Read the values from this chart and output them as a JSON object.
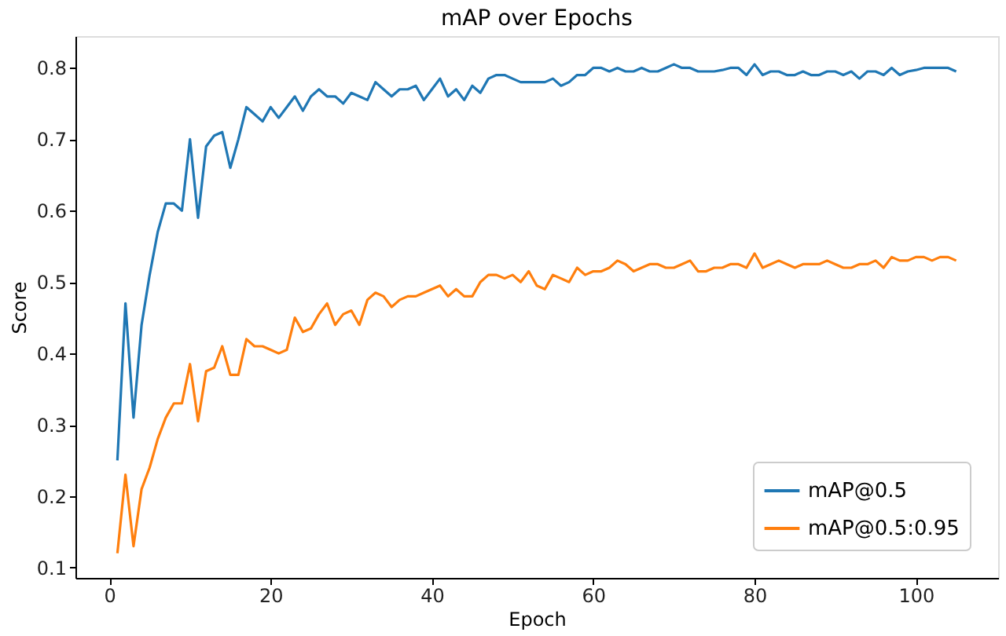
{
  "chart_data": {
    "type": "line",
    "title": "mAP over Epochs",
    "xlabel": "Epoch",
    "ylabel": "Score",
    "x": [
      1,
      2,
      3,
      4,
      5,
      6,
      7,
      8,
      9,
      10,
      11,
      12,
      13,
      14,
      15,
      16,
      17,
      18,
      19,
      20,
      21,
      22,
      23,
      24,
      25,
      26,
      27,
      28,
      29,
      30,
      31,
      32,
      33,
      34,
      35,
      36,
      37,
      38,
      39,
      40,
      41,
      42,
      43,
      44,
      45,
      46,
      47,
      48,
      49,
      50,
      51,
      52,
      53,
      54,
      55,
      56,
      57,
      58,
      59,
      60,
      61,
      62,
      63,
      64,
      65,
      66,
      67,
      68,
      69,
      70,
      71,
      72,
      73,
      74,
      75,
      76,
      77,
      78,
      79,
      80,
      81,
      82,
      83,
      84,
      85,
      86,
      87,
      88,
      89,
      90,
      91,
      92,
      93,
      94,
      95,
      96,
      97,
      98,
      99,
      100,
      101,
      102,
      103,
      104,
      105
    ],
    "series": [
      {
        "name": "mAP@0.5",
        "color": "#1f77b4",
        "values": [
          0.25,
          0.47,
          0.31,
          0.44,
          0.51,
          0.57,
          0.61,
          0.61,
          0.6,
          0.7,
          0.59,
          0.69,
          0.705,
          0.71,
          0.66,
          0.7,
          0.745,
          0.735,
          0.725,
          0.745,
          0.73,
          0.745,
          0.76,
          0.74,
          0.76,
          0.77,
          0.76,
          0.76,
          0.75,
          0.765,
          0.76,
          0.755,
          0.78,
          0.77,
          0.76,
          0.77,
          0.77,
          0.775,
          0.755,
          0.77,
          0.785,
          0.76,
          0.77,
          0.755,
          0.775,
          0.765,
          0.785,
          0.79,
          0.79,
          0.785,
          0.78,
          0.78,
          0.78,
          0.78,
          0.785,
          0.775,
          0.78,
          0.79,
          0.79,
          0.8,
          0.8,
          0.795,
          0.8,
          0.795,
          0.795,
          0.8,
          0.795,
          0.795,
          0.8,
          0.805,
          0.8,
          0.8,
          0.795,
          0.795,
          0.795,
          0.797,
          0.8,
          0.8,
          0.79,
          0.805,
          0.79,
          0.795,
          0.795,
          0.79,
          0.79,
          0.795,
          0.79,
          0.79,
          0.795,
          0.795,
          0.79,
          0.795,
          0.785,
          0.795,
          0.795,
          0.79,
          0.8,
          0.79,
          0.795,
          0.797,
          0.8,
          0.8,
          0.8,
          0.8,
          0.795
        ]
      },
      {
        "name": "mAP@0.5:0.95",
        "color": "#ff7f0e",
        "values": [
          0.12,
          0.23,
          0.13,
          0.21,
          0.24,
          0.28,
          0.31,
          0.33,
          0.33,
          0.385,
          0.305,
          0.375,
          0.38,
          0.41,
          0.37,
          0.37,
          0.42,
          0.41,
          0.41,
          0.405,
          0.4,
          0.405,
          0.45,
          0.43,
          0.435,
          0.455,
          0.47,
          0.44,
          0.455,
          0.46,
          0.44,
          0.475,
          0.485,
          0.48,
          0.465,
          0.475,
          0.48,
          0.48,
          0.485,
          0.49,
          0.495,
          0.48,
          0.49,
          0.48,
          0.48,
          0.5,
          0.51,
          0.51,
          0.505,
          0.51,
          0.5,
          0.515,
          0.495,
          0.49,
          0.51,
          0.505,
          0.5,
          0.52,
          0.51,
          0.515,
          0.515,
          0.52,
          0.53,
          0.525,
          0.515,
          0.52,
          0.525,
          0.525,
          0.52,
          0.52,
          0.525,
          0.53,
          0.515,
          0.515,
          0.52,
          0.52,
          0.525,
          0.525,
          0.52,
          0.54,
          0.52,
          0.525,
          0.53,
          0.525,
          0.52,
          0.525,
          0.525,
          0.525,
          0.53,
          0.525,
          0.52,
          0.52,
          0.525,
          0.525,
          0.53,
          0.52,
          0.535,
          0.53,
          0.53,
          0.535,
          0.535,
          0.53,
          0.535,
          0.535,
          0.53
        ]
      }
    ],
    "xlim": [
      -4.2,
      110.2
    ],
    "xticks": [
      0,
      20,
      40,
      60,
      80,
      100
    ],
    "ylim": [
      0.0855,
      0.8445
    ],
    "yticks": [
      0.1,
      0.2,
      0.3,
      0.4,
      0.5,
      0.6,
      0.7,
      0.8
    ],
    "grid": false,
    "legend": "bottom right",
    "line_style": "solid",
    "marker": "none"
  }
}
